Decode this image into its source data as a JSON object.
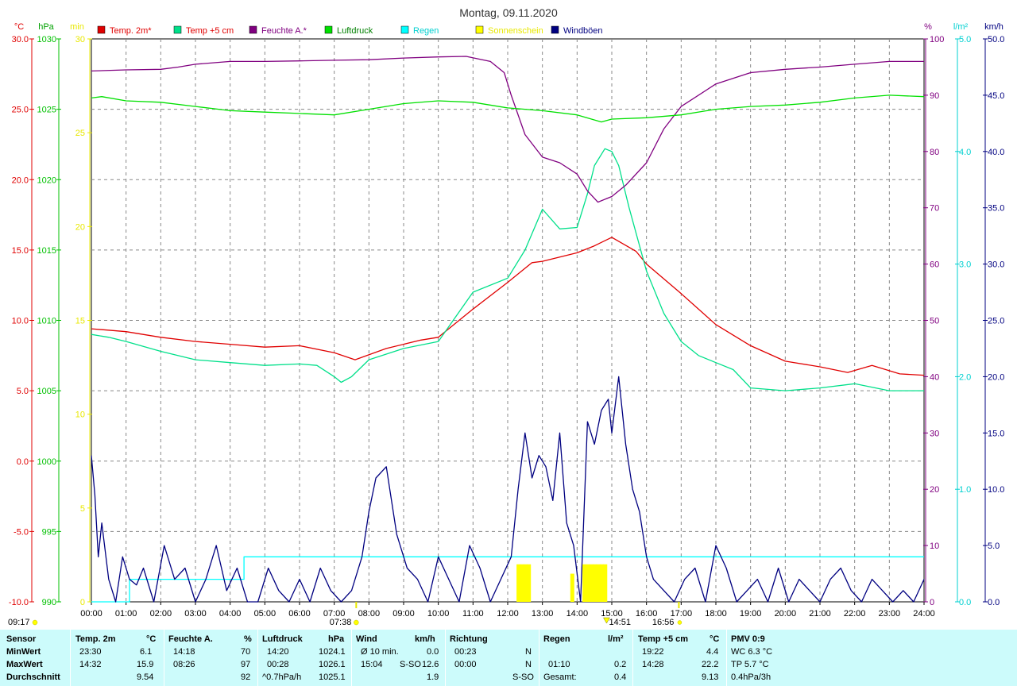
{
  "title": "Montag, 09.11.2020",
  "legend": [
    {
      "label": "Temp. 2m*",
      "color": "#e00000",
      "text_color": "#e00000"
    },
    {
      "label": "Temp +5 cm",
      "color": "#00e08a",
      "text_color": "#e00000"
    },
    {
      "label": "Feuchte A.*",
      "color": "#800080",
      "text_color": "#800080"
    },
    {
      "label": "Luftdruck",
      "color": "#00e000",
      "text_color": "#008000"
    },
    {
      "label": "Regen",
      "color": "#00ffff",
      "text_color": "#00d0d0"
    },
    {
      "label": "Sonnenschein",
      "color": "#ffff00",
      "text_color": "#e8e800"
    },
    {
      "label": "Windböen",
      "color": "#000080",
      "text_color": "#000080"
    }
  ],
  "axis_units": {
    "temp": "°C",
    "pressure": "hPa",
    "sun": "min",
    "humidity": "%",
    "rain": "l/m²",
    "wind": "km/h"
  },
  "chart_data": {
    "type": "line",
    "x_ticks": [
      "00:00",
      "01:00",
      "02:00",
      "03:00",
      "04:00",
      "05:00",
      "06:00",
      "07:00",
      "08:00",
      "09:00",
      "10:00",
      "11:00",
      "12:00",
      "13:00",
      "14:00",
      "15:00",
      "16:00",
      "17:00",
      "18:00",
      "19:00",
      "20:00",
      "21:00",
      "22:00",
      "23:00",
      "24:00"
    ],
    "axes": {
      "temp": {
        "ticks": [
          "30.0",
          "25.0",
          "20.0",
          "15.0",
          "10.0",
          "5.0",
          "0.0",
          "-5.0",
          "-10.0"
        ],
        "range": [
          -10,
          30
        ],
        "color": "#e00000"
      },
      "pressure": {
        "ticks": [
          "1030",
          "1025",
          "1020",
          "1015",
          "1010",
          "1005",
          "1000",
          "995",
          "990"
        ],
        "range": [
          990,
          1030
        ],
        "color": "#00c000"
      },
      "sun": {
        "ticks": [
          "30",
          "25",
          "20",
          "15",
          "10",
          "5",
          "0"
        ],
        "range": [
          0,
          30
        ],
        "color": "#e8e800"
      },
      "humidity": {
        "ticks": [
          "100",
          "90",
          "80",
          "70",
          "60",
          "50",
          "40",
          "30",
          "20",
          "10",
          "0"
        ],
        "range": [
          0,
          100
        ],
        "color": "#800080"
      },
      "rain": {
        "ticks": [
          "5.0",
          "4.0",
          "3.0",
          "2.0",
          "1.0",
          "0.0"
        ],
        "range": [
          0,
          5
        ],
        "color": "#00d0d0"
      },
      "wind": {
        "ticks": [
          "50.0",
          "45.0",
          "40.0",
          "35.0",
          "30.0",
          "25.0",
          "20.0",
          "15.0",
          "10.0",
          "5.0",
          "0.0"
        ],
        "range": [
          0,
          50
        ],
        "color": "#000080"
      }
    },
    "series": [
      {
        "name": "Temp. 2m*",
        "axis": "temp",
        "color": "#e00000",
        "x": [
          0,
          1,
          2,
          3,
          4,
          5,
          6,
          7,
          7.6,
          8.5,
          9.5,
          10,
          11,
          12,
          12.7,
          13,
          14,
          14.5,
          15,
          15.7,
          16,
          17,
          18,
          19,
          20,
          21,
          21.8,
          22.5,
          23.3,
          24
        ],
        "y": [
          9.4,
          9.2,
          8.8,
          8.5,
          8.3,
          8.1,
          8.2,
          7.7,
          7.2,
          8.0,
          8.6,
          8.8,
          10.8,
          12.7,
          14.1,
          14.2,
          14.8,
          15.3,
          15.9,
          14.9,
          14.0,
          11.9,
          9.7,
          8.2,
          7.1,
          6.7,
          6.3,
          6.8,
          6.2,
          6.1
        ]
      },
      {
        "name": "Temp +5 cm",
        "axis": "temp",
        "color": "#00e08a",
        "x": [
          0,
          0.5,
          1,
          2,
          3,
          4,
          5,
          6,
          6.5,
          7,
          7.2,
          7.5,
          8,
          9,
          10,
          11,
          12,
          12.5,
          13,
          13.5,
          14,
          14.3,
          14.5,
          14.8,
          15,
          15.2,
          15.5,
          16,
          16.5,
          17,
          17.5,
          18,
          18.5,
          19,
          20,
          21,
          22,
          23,
          24
        ],
        "y": [
          9.0,
          8.8,
          8.5,
          7.8,
          7.2,
          7.0,
          6.8,
          6.9,
          6.8,
          6.0,
          5.6,
          6.0,
          7.2,
          8.0,
          8.5,
          12.0,
          13.0,
          15.0,
          17.9,
          16.5,
          16.6,
          19.0,
          21.0,
          22.2,
          22.0,
          21.0,
          18.0,
          13.5,
          10.5,
          8.5,
          7.5,
          7.0,
          6.5,
          5.2,
          5.0,
          5.2,
          5.5,
          5.0,
          5.0
        ]
      },
      {
        "name": "Feuchte A.*",
        "axis": "humidity",
        "color": "#800080",
        "x": [
          0,
          1,
          2,
          2.5,
          3,
          4,
          5,
          6,
          7,
          8,
          9,
          10,
          10.8,
          11.5,
          11.9,
          12.1,
          12.5,
          13,
          13.5,
          14,
          14.3,
          14.6,
          15,
          15.4,
          16,
          16.5,
          17,
          18,
          19,
          20,
          21,
          22,
          23,
          24
        ],
        "y": [
          94.3,
          94.5,
          94.6,
          95,
          95.5,
          96,
          96,
          96.1,
          96.2,
          96.3,
          96.6,
          96.8,
          96.9,
          96,
          94,
          90,
          83,
          79,
          78,
          76,
          73,
          71,
          72,
          74,
          78,
          84,
          88,
          92,
          94,
          94.6,
          95,
          95.5,
          96,
          96
        ]
      },
      {
        "name": "Luftdruck",
        "axis": "pressure",
        "color": "#00e000",
        "x": [
          0,
          0.3,
          1,
          2,
          3,
          4,
          5,
          6,
          7,
          8,
          9,
          10,
          11,
          12,
          13,
          14,
          14.7,
          15,
          16,
          17,
          18,
          19,
          20,
          21,
          22,
          23,
          24
        ],
        "y": [
          1025.8,
          1025.9,
          1025.6,
          1025.5,
          1025.2,
          1024.9,
          1024.8,
          1024.7,
          1024.6,
          1025.0,
          1025.4,
          1025.6,
          1025.5,
          1025.1,
          1024.9,
          1024.6,
          1024.1,
          1024.3,
          1024.4,
          1024.6,
          1025.0,
          1025.2,
          1025.3,
          1025.5,
          1025.8,
          1026.0,
          1025.9
        ]
      },
      {
        "name": "Regen",
        "axis": "rain",
        "color": "#00ffff",
        "step": true,
        "x": [
          0,
          1.1,
          1.1,
          4.4,
          4.4,
          24
        ],
        "y": [
          0,
          0,
          0.2,
          0.2,
          0.4,
          0.4
        ]
      },
      {
        "name": "Windböen",
        "axis": "wind",
        "color": "#000080",
        "x": [
          0,
          0.1,
          0.2,
          0.3,
          0.5,
          0.7,
          0.9,
          1.1,
          1.3,
          1.5,
          1.8,
          2.1,
          2.4,
          2.7,
          3.0,
          3.3,
          3.6,
          3.9,
          4.2,
          4.5,
          4.8,
          5.1,
          5.4,
          5.7,
          6.0,
          6.3,
          6.6,
          6.9,
          7.2,
          7.5,
          7.8,
          8.0,
          8.2,
          8.5,
          8.8,
          9.1,
          9.4,
          9.7,
          10.0,
          10.3,
          10.6,
          10.9,
          11.2,
          11.5,
          11.8,
          12.1,
          12.3,
          12.5,
          12.7,
          12.9,
          13.1,
          13.3,
          13.5,
          13.7,
          13.9,
          14.1,
          14.3,
          14.5,
          14.7,
          14.9,
          15.0,
          15.2,
          15.4,
          15.6,
          15.8,
          16.0,
          16.2,
          16.5,
          16.8,
          17.1,
          17.4,
          17.7,
          18.0,
          18.3,
          18.6,
          18.9,
          19.2,
          19.5,
          19.8,
          20.1,
          20.4,
          20.7,
          21.0,
          21.3,
          21.6,
          21.9,
          22.2,
          22.5,
          22.8,
          23.1,
          23.4,
          23.7,
          24
        ],
        "y": [
          13,
          9.5,
          4,
          7,
          2,
          0,
          4,
          2,
          1.5,
          3,
          0,
          5,
          2,
          3,
          0,
          2,
          5,
          1,
          3,
          0,
          0,
          3,
          1,
          0,
          2,
          0,
          3,
          1,
          0,
          1,
          4,
          8,
          11,
          12,
          6,
          3,
          2,
          0,
          4,
          2,
          0,
          5,
          3,
          0,
          2,
          4,
          10,
          15,
          11,
          13,
          12,
          9,
          15,
          7,
          5,
          0,
          16,
          14,
          17,
          18,
          15,
          20,
          14,
          10,
          8,
          4,
          2,
          1,
          0,
          2,
          3,
          0,
          5,
          3,
          0,
          1,
          2,
          0,
          3,
          0,
          2,
          1,
          0,
          2,
          3,
          1,
          0,
          2,
          1,
          0,
          1,
          0,
          2
        ]
      },
      {
        "name": "Sonnenschein",
        "axis": "sun",
        "color": "#ffff00",
        "type": "bar",
        "x": [
          12.3,
          12.4,
          12.5,
          12.6,
          13.85,
          14.2,
          14.3,
          14.4,
          14.5,
          14.6,
          14.7,
          14.8
        ],
        "y": [
          2,
          2,
          2,
          2,
          1.5,
          2,
          2,
          2,
          2,
          2,
          2,
          2
        ]
      }
    ]
  },
  "time_markers": {
    "left": "09:17",
    "sunrise": "07:38",
    "noon": "14:51",
    "sunset": "16:56"
  },
  "stats": {
    "row_labels": [
      "Sensor",
      "MinWert",
      "MaxWert",
      "Durchschnitt"
    ],
    "temp2m": {
      "title": "Temp. 2m",
      "unit": "°C",
      "min_time": "23:30",
      "min": "6.1",
      "max_time": "14:32",
      "max": "15.9",
      "avg": "9.54"
    },
    "humidity": {
      "title": "Feuchte A.",
      "unit": "%",
      "min_time": "14:18",
      "min": "70",
      "max_time": "08:26",
      "max": "97",
      "avg": "92"
    },
    "pressure": {
      "title": "Luftdruck",
      "unit": "hPa",
      "min_time": "14:20",
      "min": "1024.1",
      "max_time": "00:28",
      "max": "1026.1",
      "trend": "^0.7hPa/h",
      "avg": "1025.1"
    },
    "wind": {
      "title": "Wind",
      "unit": "km/h",
      "min_label": "Ø 10 min.",
      "min": "0.0",
      "max_time": "15:04",
      "max_dir": "S-SO",
      "max": "12.6",
      "avg": "1.9"
    },
    "direction": {
      "title": "Richtung",
      "min_time": "00:23",
      "min": "N",
      "max_time": "00:00",
      "max": "N",
      "avg": "S-SO"
    },
    "rain": {
      "title": "Regen",
      "unit": "l/m²",
      "max_time": "01:10",
      "max": "0.2",
      "total_label": "Gesamt:",
      "total": "0.4"
    },
    "temp5": {
      "title": "Temp +5 cm",
      "unit": "°C",
      "min_time": "19:22",
      "min": "4.4",
      "max_time": "14:28",
      "max": "22.2",
      "avg": "9.13"
    },
    "pmv": {
      "title": "PMV 0:9",
      "wc": "WC 6.3 °C",
      "tp": "TP 5.7 °C",
      "trend": "0.4hPa/3h"
    }
  }
}
